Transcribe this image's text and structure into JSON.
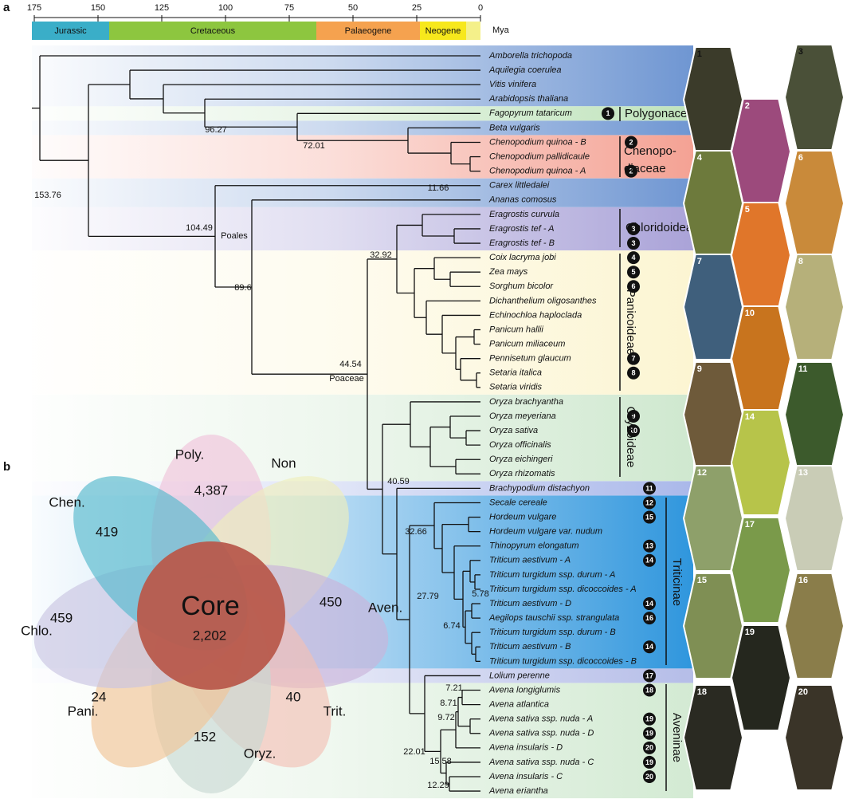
{
  "panels": {
    "a": "a",
    "b": "b"
  },
  "timescale": {
    "ticks": [
      175,
      150,
      125,
      100,
      75,
      50,
      25,
      0
    ],
    "unit": "Mya",
    "eras": [
      "Jurassic",
      "Cretaceous",
      "Palaeogene",
      "Neogene"
    ]
  },
  "tree": {
    "taxa": [
      {
        "name": "Amborella trichopoda"
      },
      {
        "name": "Aquilegia coerulea"
      },
      {
        "name": "Vitis vinifera"
      },
      {
        "name": "Arabidopsis thaliana"
      },
      {
        "name": "Fagopyrum tataricum",
        "badge": "1"
      },
      {
        "name": "Beta vulgaris"
      },
      {
        "name": "Chenopodium quinoa - B",
        "badge": "2"
      },
      {
        "name": "Chenopodium pallidicaule"
      },
      {
        "name": "Chenopodium quinoa - A",
        "badge": "2"
      },
      {
        "name": "Carex littledalei"
      },
      {
        "name": "Ananas comosus"
      },
      {
        "name": "Eragrostis curvula"
      },
      {
        "name": "Eragrostis tef - A",
        "badge": "3"
      },
      {
        "name": "Eragrostis tef - B",
        "badge": "3"
      },
      {
        "name": "Coix lacryma jobi",
        "badge": "4"
      },
      {
        "name": "Zea mays",
        "badge": "5"
      },
      {
        "name": "Sorghum bicolor",
        "badge": "6"
      },
      {
        "name": "Dichanthelium oligosanthes"
      },
      {
        "name": "Echinochloa haploclada"
      },
      {
        "name": "Panicum hallii"
      },
      {
        "name": "Panicum miliaceum"
      },
      {
        "name": "Pennisetum glaucum",
        "badge": "7"
      },
      {
        "name": "Setaria italica",
        "badge": "8"
      },
      {
        "name": "Setaria viridis"
      },
      {
        "name": "Oryza brachyantha"
      },
      {
        "name": "Oryza meyeriana",
        "badge": "9"
      },
      {
        "name": "Oryza sativa",
        "badge": "10"
      },
      {
        "name": "Oryza officinalis"
      },
      {
        "name": "Oryza eichingeri"
      },
      {
        "name": "Oryza rhizomatis"
      },
      {
        "name": "Brachypodium distachyon",
        "badge": "11"
      },
      {
        "name": "Secale cereale",
        "badge": "12"
      },
      {
        "name": "Hordeum vulgare",
        "badge": "15"
      },
      {
        "name": "Hordeum vulgare  var. nudum"
      },
      {
        "name": "Thinopyrum elongatum",
        "badge": "13"
      },
      {
        "name": "Triticum aestivum - A",
        "badge": "14"
      },
      {
        "name": "Triticum turgidum ssp. durum - A"
      },
      {
        "name": "Triticum turgidum ssp. dicoccoides - A"
      },
      {
        "name": "Triticum aestivum - D",
        "badge": "14"
      },
      {
        "name": "Aegilops tauschii ssp. strangulata",
        "badge": "16"
      },
      {
        "name": "Triticum turgidum ssp. durum - B"
      },
      {
        "name": "Triticum aestivum - B",
        "badge": "14"
      },
      {
        "name": "Triticum turgidum ssp. dicoccoides - B"
      },
      {
        "name": "Lolium perenne",
        "badge": "17"
      },
      {
        "name": "Avena longiglumis",
        "badge": "18"
      },
      {
        "name": "Avena atlantica"
      },
      {
        "name": "Avena sativa ssp. nuda - A",
        "badge": "19"
      },
      {
        "name": "Avena sativa ssp. nuda - D",
        "badge": "19"
      },
      {
        "name": "Avena insularis - D",
        "badge": "20"
      },
      {
        "name": "Avena sativa ssp. nuda - C",
        "badge": "19"
      },
      {
        "name": "Avena insularis - C",
        "badge": "20"
      },
      {
        "name": "Avena eriantha"
      }
    ],
    "node_labels": [
      "153.76",
      "104.49",
      "89.6",
      "96.27",
      "72.01",
      "11.66",
      "44.54",
      "32.92",
      "40.59",
      "32.66",
      "27.79",
      "6.74",
      "5.78",
      "22.01",
      "15.58",
      "9.72",
      "8.71",
      "7.21",
      "12.29"
    ],
    "clade_nodes": [
      "Poales",
      "Poaceae"
    ],
    "clades": {
      "polygonaceae": "Polygonaceae",
      "chenopodiaceae": [
        "Chenopo-",
        "diaceae"
      ],
      "chloridoideae": "Chloridoideae",
      "panicoideae": "Panicoideae",
      "oryzoideae": "Oryzoideae",
      "triticinae": "Triticinae",
      "aveninae": "Aveninae",
      "aven": "Aven."
    }
  },
  "photos": [
    "1",
    "2",
    "3",
    "4",
    "5",
    "6",
    "7",
    "8",
    "9",
    "10",
    "11",
    "12",
    "13",
    "14",
    "15",
    "16",
    "17",
    "18",
    "19",
    "20"
  ],
  "venn": {
    "labels": [
      "Poly.",
      "Non",
      "Chen.",
      "Chlo.",
      "Pani.",
      "Oryz.",
      "Trit."
    ],
    "counts": [
      "4,387",
      "419",
      "459",
      "450",
      "24",
      "40",
      "152"
    ],
    "core": {
      "label": "Core",
      "count": "2,202"
    }
  }
}
